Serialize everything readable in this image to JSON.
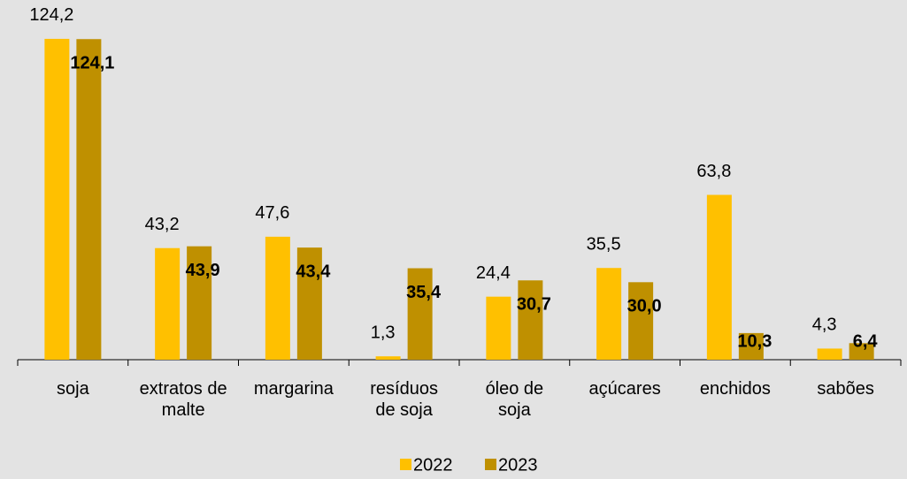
{
  "chart_data": {
    "type": "bar",
    "categories": [
      "soja",
      "extratos de malte",
      "margarina",
      "resíduos de soja",
      "óleo de soja",
      "açúcares",
      "enchidos",
      "sabões"
    ],
    "series": [
      {
        "name": "2022",
        "color": "#ffc000",
        "values": [
          124.2,
          43.2,
          47.6,
          1.3,
          24.4,
          35.5,
          63.8,
          4.3
        ],
        "value_labels": [
          "124,2",
          "43,2",
          "47,6",
          "1,3",
          "24,4",
          "35,5",
          "63,8",
          "4,3"
        ]
      },
      {
        "name": "2023",
        "color": "#bf9000",
        "values": [
          124.1,
          43.9,
          43.4,
          35.4,
          30.7,
          30.0,
          10.3,
          6.4
        ],
        "value_labels": [
          "124,1",
          "43,9",
          "43,4",
          "35,4",
          "30,7",
          "30,0",
          "10,3",
          "6,4"
        ]
      }
    ],
    "ylim": [
      0,
      130
    ]
  }
}
